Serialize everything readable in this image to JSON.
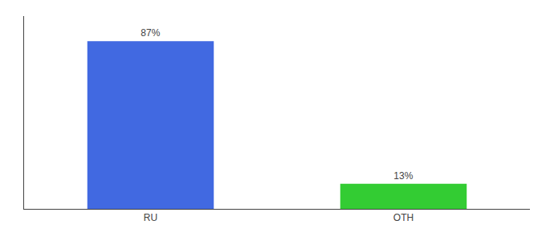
{
  "chart_data": {
    "type": "bar",
    "categories": [
      "RU",
      "OTH"
    ],
    "values": [
      87,
      13
    ],
    "value_labels": [
      "87%",
      "13%"
    ],
    "colors": [
      "#4169e1",
      "#33cc33"
    ],
    "ylim": [
      0,
      100
    ],
    "yticks": [],
    "grid": false,
    "data_labels": true,
    "tick_labels": "x"
  }
}
